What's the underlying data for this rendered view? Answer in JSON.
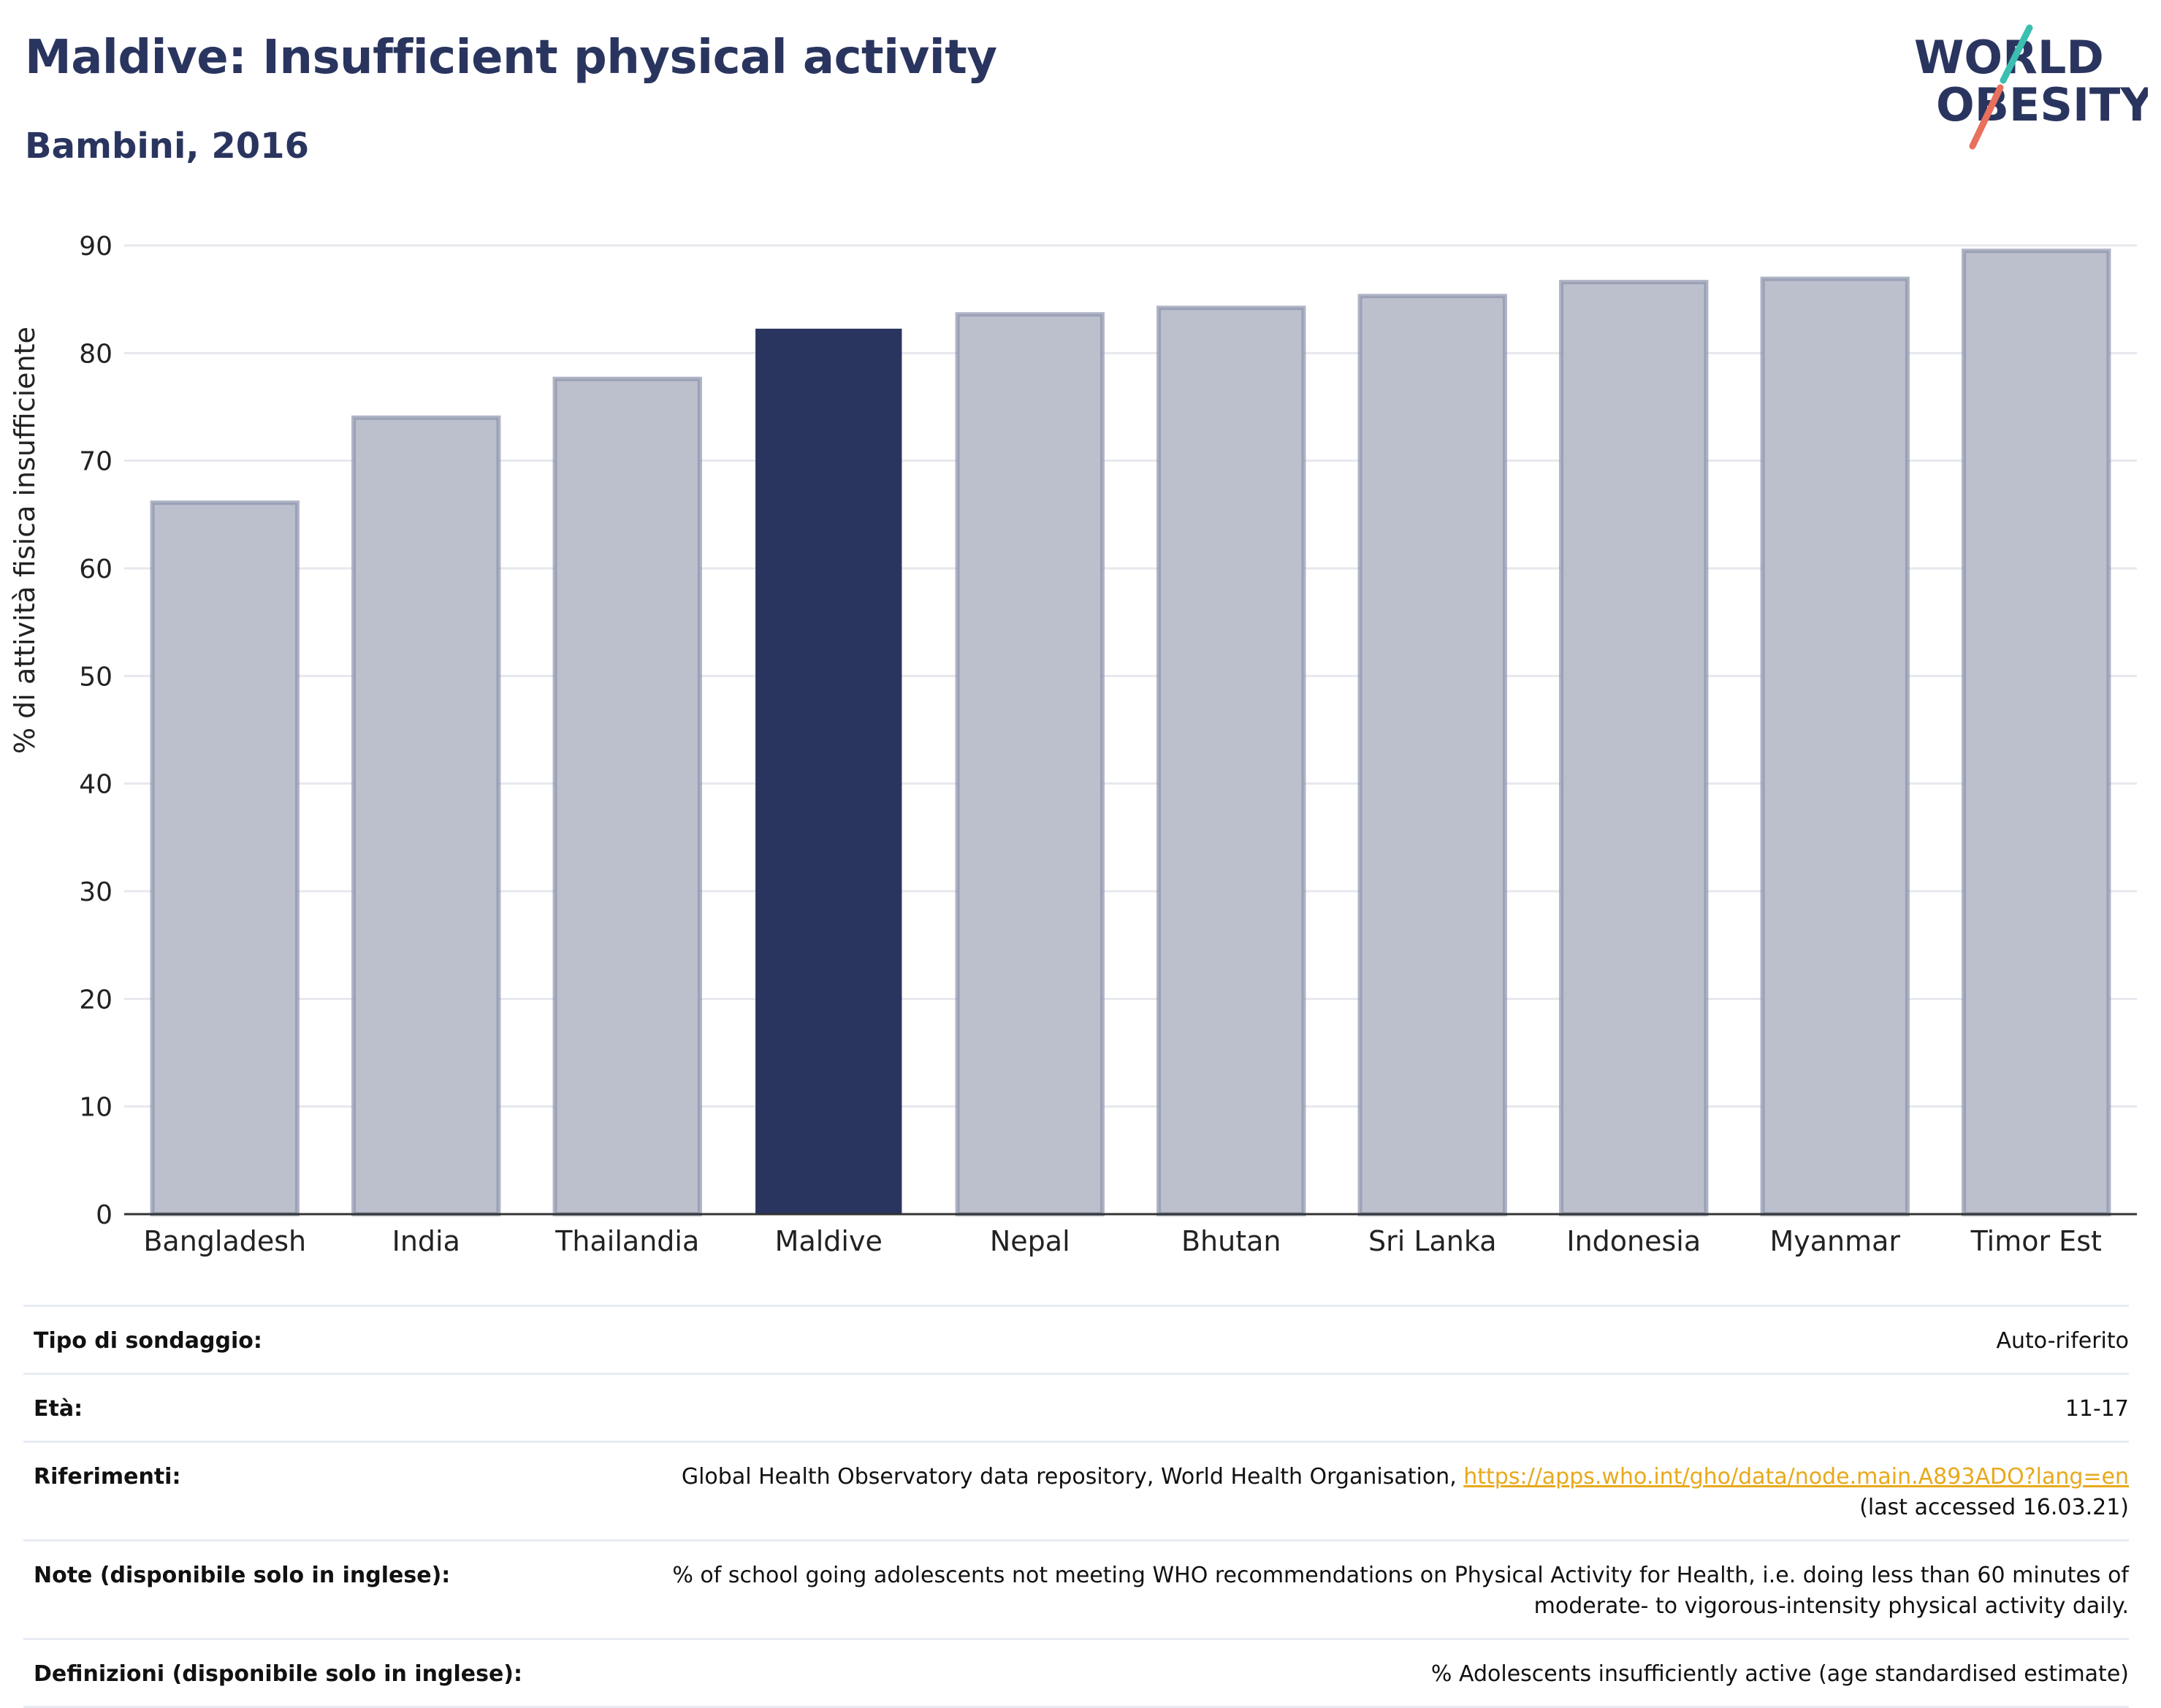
{
  "header": {
    "title": "Maldive: Insufficient physical activity",
    "subtitle": "Bambini, 2016"
  },
  "logo": {
    "line1": "WORLD",
    "line2": "OBESITY",
    "text_color": "#2a355f",
    "slash_colors": [
      "#3bbfb0",
      "#e8705c"
    ]
  },
  "chart_data": {
    "type": "bar",
    "title": "Maldive: Insufficient physical activity",
    "subtitle": "Bambini, 2016",
    "xlabel": "",
    "ylabel": "% di attività fisica insufficiente",
    "ylim": [
      0,
      90
    ],
    "yticks": [
      0,
      10,
      20,
      30,
      40,
      50,
      60,
      70,
      80,
      90
    ],
    "grid": true,
    "categories": [
      "Bangladesh",
      "India",
      "Thailandia",
      "Maldive",
      "Nepal",
      "Bhutan",
      "Sri Lanka",
      "Indonesia",
      "Myanmar",
      "Timor Est"
    ],
    "values": [
      66.1,
      74.0,
      77.6,
      82.2,
      83.6,
      84.2,
      85.3,
      86.6,
      86.9,
      89.5
    ],
    "highlight": "Maldive",
    "colors": {
      "default_fill": "#bcc0cd",
      "default_stroke": "#8c94ad",
      "highlight_fill": "#2a355f"
    }
  },
  "info": [
    {
      "key": "Tipo di sondaggio:",
      "value": "Auto-riferito"
    },
    {
      "key": "Età:",
      "value": "11-17"
    },
    {
      "key": "Riferimenti:",
      "value": "Global Health Observatory data repository, World Health Organisation, ",
      "link": "https://apps.who.int/gho/data/node.main.A893ADO?lang=en",
      "value_after": "(last accessed 16.03.21)"
    },
    {
      "key": "Note (disponibile solo in inglese):",
      "value": "% of school going adolescents not meeting WHO recommendations on Physical Activity for Health, i.e. doing less than 60 minutes of moderate- to vigorous-intensity physical activity daily."
    },
    {
      "key": "Definizioni (disponibile solo in inglese):",
      "value": "% Adolescents insufficiently active (age standardised estimate)"
    }
  ]
}
